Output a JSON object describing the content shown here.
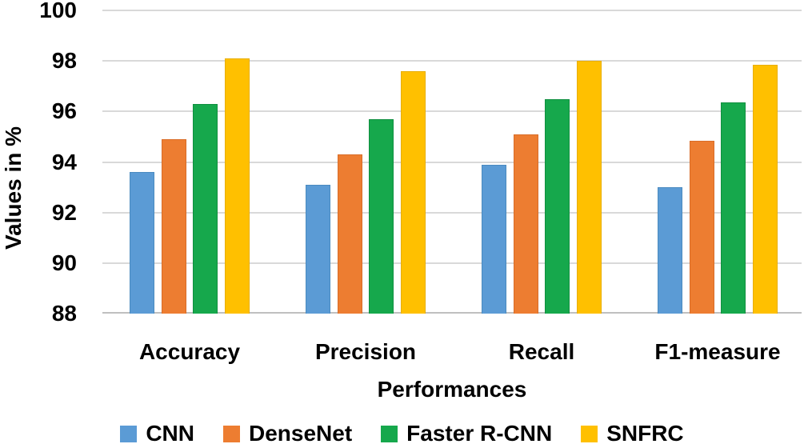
{
  "chart_data": {
    "type": "bar",
    "categories": [
      "Accuracy",
      "Precision",
      "Recall",
      "F1-measure"
    ],
    "series": [
      {
        "name": "CNN",
        "color": "#5B9BD5",
        "border": "#4A8AC0",
        "values": [
          93.6,
          93.1,
          93.9,
          93.0
        ]
      },
      {
        "name": "DenseNet",
        "color": "#ED7D31",
        "border": "#D96D28",
        "values": [
          94.9,
          94.3,
          95.1,
          94.85
        ]
      },
      {
        "name": "Faster R-CNN",
        "color": "#16A84C",
        "border": "#0F8F3F",
        "values": [
          96.3,
          95.7,
          96.5,
          96.35
        ]
      },
      {
        "name": "SNFRC",
        "color": "#FFC000",
        "border": "#E8AE00",
        "values": [
          98.1,
          97.6,
          98.0,
          97.85
        ]
      }
    ],
    "xlabel": "Performances",
    "ylabel": "Values in %",
    "ylim": [
      88,
      100
    ],
    "yticks": [
      100,
      98,
      96,
      94,
      92,
      90,
      88
    ],
    "grid": true,
    "legend_position": "bottom",
    "gridline_color": "#D9D9D9",
    "axisline_color": "#BFBFBF",
    "background": "#FFFFFF"
  }
}
